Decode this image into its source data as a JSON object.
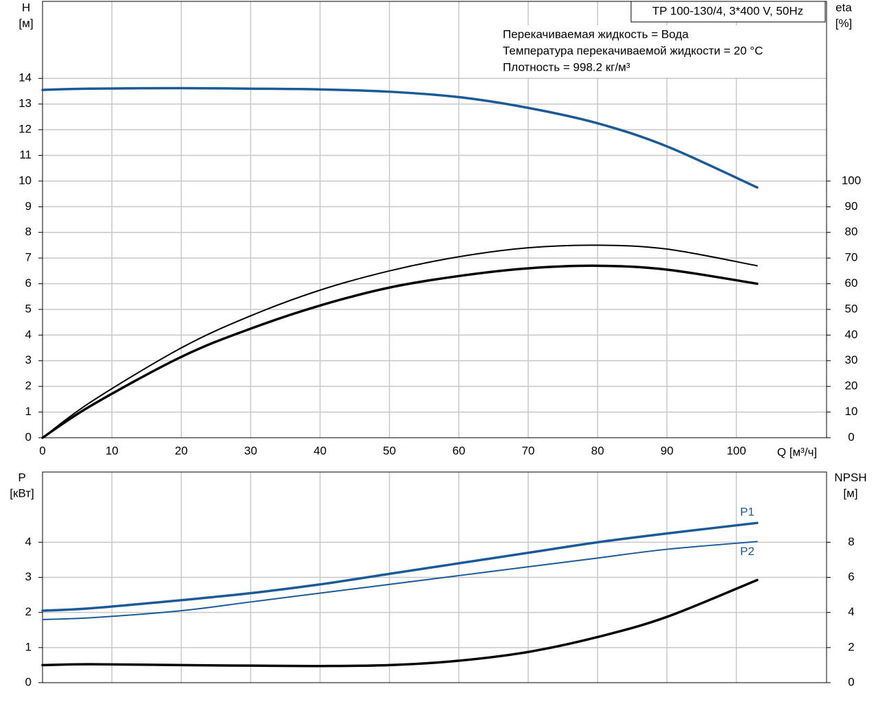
{
  "chart_data": [
    {
      "type": "line",
      "title": "TP 100-130/4, 3*400 V, 50Hz",
      "annotations": [
        "Перекачиваемая жидкость = Вода",
        "Температура перекачиваемой жидкости = 20 °C",
        "Плотность = 998.2 кг/м³"
      ],
      "y_label": "H",
      "y_unit": "[м]",
      "y2_label": "eta",
      "y2_unit": "[%]",
      "x_label": "Q [м³/ч]",
      "x": [
        0,
        7,
        20,
        30,
        40,
        50,
        60,
        70,
        80,
        90,
        103
      ],
      "xlim": [
        0,
        113
      ],
      "xticks": [
        0,
        10,
        20,
        30,
        40,
        50,
        60,
        70,
        80,
        90,
        100
      ],
      "ylim": [
        0,
        17
      ],
      "yticks": [
        0,
        1,
        2,
        3,
        4,
        5,
        6,
        7,
        8,
        9,
        10,
        11,
        12,
        13,
        14
      ],
      "y2lim": [
        0,
        170
      ],
      "y2ticks": [
        0,
        10,
        20,
        30,
        40,
        50,
        60,
        70,
        80,
        90,
        100
      ],
      "grid": true,
      "series": [
        {
          "color": "#1a5a96",
          "values": [
            13.55,
            13.6,
            13.62,
            13.6,
            13.57,
            13.48,
            13.27,
            12.85,
            12.25,
            11.35,
            9.75
          ]
        },
        {
          "color": "#000000",
          "axis": "y2",
          "values": [
            0,
            14,
            35,
            47.5,
            57.5,
            65,
            70.5,
            74,
            75,
            73.5,
            67
          ]
        },
        {
          "color": "#000000",
          "axis": "y2",
          "values": [
            0,
            12.5,
            31.5,
            42.5,
            51.5,
            58.5,
            63,
            66,
            67,
            65.5,
            60
          ]
        }
      ]
    },
    {
      "type": "line",
      "y_label": "P",
      "y_unit": "[кВт]",
      "y2_label": "NPSH",
      "y2_unit": "[м]",
      "x": [
        0,
        7,
        20,
        30,
        40,
        50,
        60,
        70,
        80,
        90,
        103
      ],
      "xlim": [
        0,
        113
      ],
      "ylim": [
        0,
        6
      ],
      "yticks": [
        0,
        1,
        2,
        3,
        4
      ],
      "y2lim": [
        0,
        12
      ],
      "y2ticks": [
        0,
        2,
        4,
        6,
        8
      ],
      "grid": true,
      "series": [
        {
          "name": "P1",
          "color": "#1a5a96",
          "values": [
            2.05,
            2.12,
            2.35,
            2.55,
            2.8,
            3.1,
            3.4,
            3.7,
            4.0,
            4.25,
            4.55
          ]
        },
        {
          "name": "P2",
          "color": "#1a5a96",
          "values": [
            1.8,
            1.85,
            2.05,
            2.3,
            2.55,
            2.8,
            3.05,
            3.3,
            3.55,
            3.8,
            4.02
          ]
        },
        {
          "color": "#000000",
          "axis": "y2",
          "values": [
            1.0,
            1.05,
            1.0,
            0.97,
            0.95,
            1.0,
            1.25,
            1.75,
            2.6,
            3.75,
            5.85
          ]
        }
      ]
    }
  ]
}
